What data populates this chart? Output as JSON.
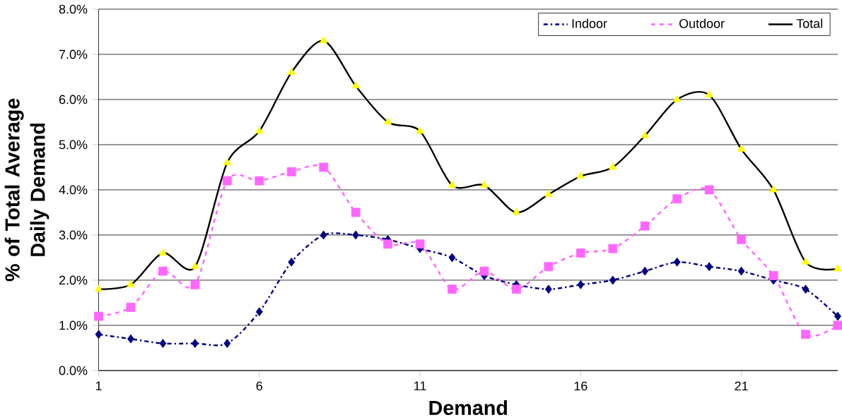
{
  "chart_data": {
    "type": "line",
    "xlabel": "Demand",
    "ylabel": "% of Total Average Daily Demand",
    "x": [
      1,
      2,
      3,
      4,
      5,
      6,
      7,
      8,
      9,
      10,
      11,
      12,
      13,
      14,
      15,
      16,
      17,
      18,
      19,
      20,
      21,
      22,
      23,
      24
    ],
    "xlim": [
      1,
      24
    ],
    "xticks": [
      1,
      6,
      11,
      16,
      21
    ],
    "ylim": [
      0,
      8
    ],
    "yticks": [
      {
        "value": 0,
        "label": "0.0%"
      },
      {
        "value": 1,
        "label": "1.0%"
      },
      {
        "value": 2,
        "label": "2.0%"
      },
      {
        "value": 3,
        "label": "3.0%"
      },
      {
        "value": 4,
        "label": "4.0%"
      },
      {
        "value": 5,
        "label": "5.0%"
      },
      {
        "value": 6,
        "label": "6.0%"
      },
      {
        "value": 7,
        "label": "7.0%"
      },
      {
        "value": 8,
        "label": "8.0%"
      }
    ],
    "grid": "y",
    "legend": "top right",
    "series": [
      {
        "name": "Indoor",
        "color": "#000080",
        "marker": "diamond",
        "line_style": "dashed",
        "values": [
          0.8,
          0.7,
          0.6,
          0.6,
          0.6,
          1.3,
          2.4,
          3.0,
          3.0,
          2.9,
          2.7,
          2.5,
          2.1,
          1.9,
          1.8,
          1.9,
          2.0,
          2.2,
          2.4,
          2.3,
          2.2,
          2.0,
          1.8,
          1.2
        ]
      },
      {
        "name": "Outdoor",
        "color": "#ff66ff",
        "marker": "square",
        "line_style": "dotted",
        "values": [
          1.2,
          1.4,
          2.2,
          1.9,
          4.2,
          4.2,
          4.4,
          4.5,
          3.5,
          2.8,
          2.8,
          1.8,
          2.2,
          1.8,
          2.3,
          2.6,
          2.7,
          3.2,
          3.8,
          4.0,
          2.9,
          2.1,
          0.8,
          1.0
        ]
      },
      {
        "name": "Total",
        "color": "#000000",
        "colors": [
          "#ffff00",
          "#ffff00",
          "#ffff00",
          "#ffff00",
          "#ffff00",
          "#ffff00",
          "#ffff00",
          "#ffff00",
          "#ffff00",
          "#ffff00",
          "#ffff00",
          "#ffff00",
          "#ffff00",
          "#ffff00",
          "#ffff00",
          "#ffff00",
          "#ffff00",
          "#ffff00",
          "#ffff00",
          "#ffff00",
          "#ffff00",
          "#ffff00",
          "#ffff00",
          "#ffff00"
        ],
        "marker": "triangle",
        "line_style": "solid",
        "values": [
          1.8,
          1.9,
          2.6,
          2.3,
          4.6,
          5.3,
          6.6,
          7.3,
          6.3,
          5.5,
          5.3,
          4.1,
          4.1,
          3.5,
          3.9,
          4.3,
          4.5,
          5.2,
          6.0,
          6.1,
          4.9,
          4.0,
          2.4,
          2.25
        ]
      }
    ]
  }
}
